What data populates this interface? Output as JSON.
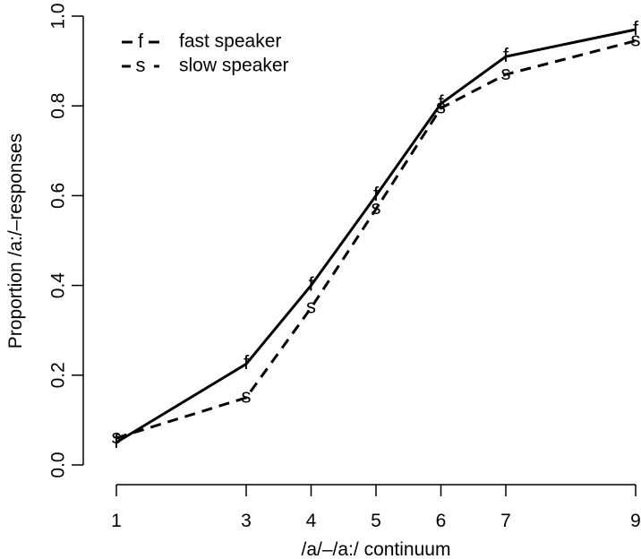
{
  "chart_data": {
    "type": "line",
    "xlabel": "/a/–/a:/ continuum",
    "ylabel": "Proportion /a:/–responses",
    "x": [
      1,
      3,
      4,
      5,
      6,
      7,
      9
    ],
    "x_ticks": [
      "1",
      "3",
      "4",
      "5",
      "6",
      "7",
      "9"
    ],
    "y_ticks": [
      "0.0",
      "0.2",
      "0.4",
      "0.6",
      "0.8",
      "1.0"
    ],
    "xlim": [
      1,
      9
    ],
    "ylim": [
      0,
      1
    ],
    "grid": false,
    "legend_position": "top-left",
    "series": [
      {
        "name": "fast speaker",
        "marker": "f",
        "line_style": "solid",
        "values": [
          0.05,
          0.225,
          0.4,
          0.6,
          0.805,
          0.91,
          0.97
        ]
      },
      {
        "name": "slow speaker",
        "marker": "s",
        "line_style": "dashed",
        "values": [
          0.06,
          0.15,
          0.35,
          0.57,
          0.795,
          0.87,
          0.945
        ]
      }
    ]
  }
}
